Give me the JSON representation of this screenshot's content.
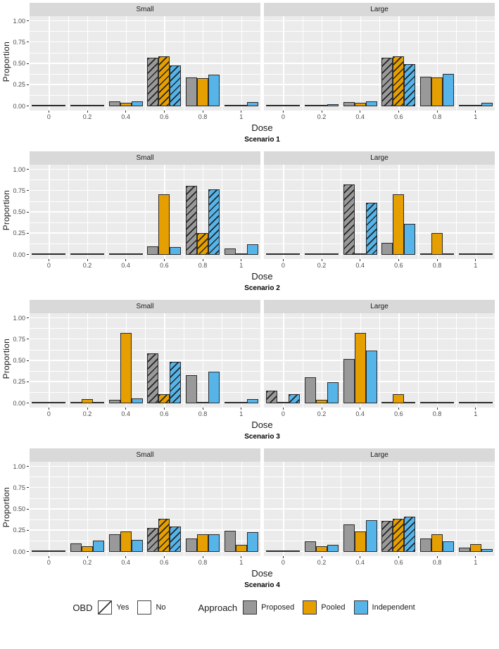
{
  "figure": {
    "xlabel": "Dose",
    "ylabel": "Proportion",
    "y_tick_labels": [
      "0.00",
      "0.25",
      "0.50",
      "0.75",
      "1.00"
    ],
    "x_tick_labels": [
      "0",
      "0.2",
      "0.4",
      "0.6",
      "0.8",
      "1"
    ]
  },
  "legend": {
    "obd_title": "OBD",
    "obd_items": [
      {
        "label": "Yes",
        "hatched": true
      },
      {
        "label": "No",
        "hatched": false
      }
    ],
    "approach_title": "Approach",
    "approach_items": [
      {
        "label": "Proposed",
        "color": "#999999"
      },
      {
        "label": "Pooled",
        "color": "#E69F00"
      },
      {
        "label": "Independent",
        "color": "#56B4E9"
      }
    ]
  },
  "chart_data": {
    "type": "bar",
    "title": "",
    "xlabel": "Dose",
    "ylabel": "Proportion",
    "ylim": [
      0,
      1.05
    ],
    "y_major_ticks": [
      0,
      0.25,
      0.5,
      0.75,
      1.0
    ],
    "x_categories": [
      0,
      0.2,
      0.4,
      0.6,
      0.8,
      1
    ],
    "series_order": [
      "Proposed",
      "Pooled",
      "Independent"
    ],
    "colors": {
      "Proposed": "#999999",
      "Pooled": "#E69F00",
      "Independent": "#56B4E9"
    },
    "hatch_meaning": "OBD = Yes (dose group drawn with diagonal hatching)",
    "grid": "white major/minor gridlines on gray panel",
    "legend_position": "bottom",
    "facets": [
      {
        "label": "Scenario 1",
        "panels": [
          {
            "title": "Small",
            "obd_dose": 0.6,
            "series": {
              "Proposed": [
                0.005,
                0.01,
                0.055,
                0.57,
                0.34,
                0.02
              ],
              "Pooled": [
                0.005,
                0.01,
                0.04,
                0.59,
                0.33,
                0.015
              ],
              "Independent": [
                0.005,
                0.02,
                0.055,
                0.48,
                0.375,
                0.05
              ]
            }
          },
          {
            "title": "Large",
            "obd_dose": 0.6,
            "series": {
              "Proposed": [
                0.005,
                0.01,
                0.05,
                0.57,
                0.35,
                0.02
              ],
              "Pooled": [
                0.005,
                0.01,
                0.04,
                0.59,
                0.34,
                0.015
              ],
              "Independent": [
                0.005,
                0.025,
                0.06,
                0.5,
                0.38,
                0.04
              ]
            }
          }
        ]
      },
      {
        "label": "Scenario 2",
        "panels": [
          {
            "title": "Small",
            "obd_dose": 0.8,
            "series": {
              "Proposed": [
                0.005,
                0.005,
                0.005,
                0.1,
                0.81,
                0.075
              ],
              "Pooled": [
                0.005,
                0.005,
                0.02,
                0.71,
                0.26,
                0.005
              ],
              "Independent": [
                0.005,
                0.005,
                0.005,
                0.09,
                0.77,
                0.12
              ]
            }
          },
          {
            "title": "Large",
            "obd_dose": 0.4,
            "series": {
              "Proposed": [
                0.005,
                0.02,
                0.83,
                0.14,
                0.005,
                0.005
              ],
              "Pooled": [
                0.005,
                0.005,
                0.02,
                0.71,
                0.26,
                0.005
              ],
              "Independent": [
                0.005,
                0.015,
                0.61,
                0.36,
                0.005,
                0.005
              ]
            }
          }
        ]
      },
      {
        "label": "Scenario 3",
        "panels": [
          {
            "title": "Small",
            "obd_dose": 0.6,
            "series": {
              "Proposed": [
                0.005,
                0.015,
                0.045,
                0.59,
                0.33,
                0.02
              ],
              "Pooled": [
                0.005,
                0.05,
                0.83,
                0.11,
                0.005,
                0.005
              ],
              "Independent": [
                0.005,
                0.02,
                0.06,
                0.49,
                0.375,
                0.05
              ]
            }
          },
          {
            "title": "Large",
            "obd_dose": 0,
            "series": {
              "Proposed": [
                0.15,
                0.31,
                0.52,
                0.005,
                0.005,
                0.005
              ],
              "Pooled": [
                0.005,
                0.04,
                0.83,
                0.11,
                0.005,
                0.005
              ],
              "Independent": [
                0.11,
                0.25,
                0.62,
                0.005,
                0.005,
                0.005
              ]
            }
          }
        ]
      },
      {
        "label": "Scenario 4",
        "panels": [
          {
            "title": "Small",
            "obd_dose": 0.6,
            "series": {
              "Proposed": [
                0.005,
                0.1,
                0.21,
                0.28,
                0.155,
                0.245
              ],
              "Pooled": [
                0.005,
                0.07,
                0.24,
                0.39,
                0.21,
                0.085
              ],
              "Independent": [
                0.005,
                0.13,
                0.14,
                0.3,
                0.21,
                0.23
              ]
            }
          },
          {
            "title": "Large",
            "obd_dose": 0.6,
            "series": {
              "Proposed": [
                0.005,
                0.12,
                0.32,
                0.36,
                0.16,
                0.05
              ],
              "Pooled": [
                0.005,
                0.07,
                0.24,
                0.39,
                0.21,
                0.09
              ],
              "Independent": [
                0.005,
                0.08,
                0.37,
                0.41,
                0.12,
                0.03
              ]
            }
          }
        ]
      }
    ]
  }
}
